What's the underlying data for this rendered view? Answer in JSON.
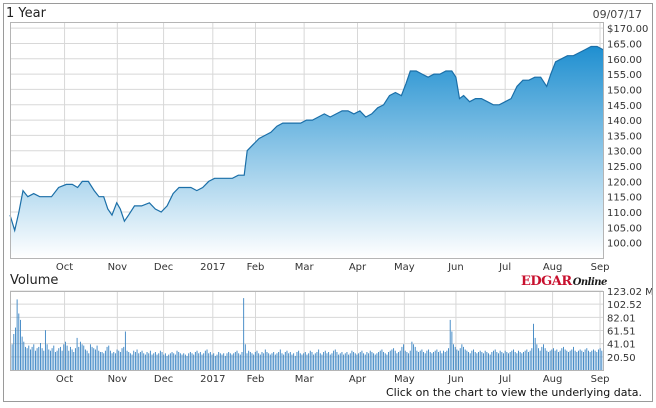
{
  "header": {
    "period": "1 Year",
    "date": "09/07/17"
  },
  "volume_title": "Volume",
  "footer_note": "Click on the chart to view the underlying data.",
  "brand": {
    "edgar": "EDGAR",
    "online": "Online"
  },
  "colors": {
    "price_top": "#1f8fd0",
    "price_bottom": "#ffffff",
    "price_line": "#1b6fa8",
    "volume_bar": "#3d86c4",
    "grid": "#d8d8d8",
    "frame": "#9a9a9a"
  },
  "chart_data": [
    {
      "type": "area",
      "title": "1 Year",
      "x_labels": [
        "Oct",
        "Nov",
        "Dec",
        "2017",
        "Feb",
        "Mar",
        "Apr",
        "May",
        "Jun",
        "Jul",
        "Aug",
        "Sep"
      ],
      "x_label_positions": [
        0.092,
        0.181,
        0.259,
        0.342,
        0.414,
        0.496,
        0.586,
        0.665,
        0.752,
        0.835,
        0.915,
        0.995
      ],
      "y_ticks": [
        "$170.00",
        "165.00",
        "160.00",
        "155.00",
        "150.00",
        "145.00",
        "140.00",
        "135.00",
        "130.00",
        "125.00",
        "120.00",
        "115.00",
        "110.00",
        "105.00",
        "100.00"
      ],
      "ylim": [
        95,
        172
      ],
      "y_axis_side": "right",
      "grid": true,
      "series": [
        {
          "values": [
            [
              0.0,
              109
            ],
            [
              0.008,
              104
            ],
            [
              0.015,
              110
            ],
            [
              0.022,
              117
            ],
            [
              0.03,
              115
            ],
            [
              0.04,
              116
            ],
            [
              0.05,
              115
            ],
            [
              0.06,
              115
            ],
            [
              0.07,
              115
            ],
            [
              0.082,
              118
            ],
            [
              0.095,
              119
            ],
            [
              0.105,
              119
            ],
            [
              0.114,
              118
            ],
            [
              0.122,
              120
            ],
            [
              0.132,
              120
            ],
            [
              0.142,
              117
            ],
            [
              0.15,
              115
            ],
            [
              0.158,
              115
            ],
            [
              0.165,
              111
            ],
            [
              0.172,
              109
            ],
            [
              0.18,
              113
            ],
            [
              0.186,
              111
            ],
            [
              0.193,
              107
            ],
            [
              0.2,
              109
            ],
            [
              0.21,
              112
            ],
            [
              0.222,
              112
            ],
            [
              0.235,
              113
            ],
            [
              0.245,
              111
            ],
            [
              0.255,
              110
            ],
            [
              0.265,
              112
            ],
            [
              0.275,
              116
            ],
            [
              0.285,
              118
            ],
            [
              0.295,
              118
            ],
            [
              0.305,
              118
            ],
            [
              0.315,
              117
            ],
            [
              0.325,
              118
            ],
            [
              0.335,
              120
            ],
            [
              0.345,
              121
            ],
            [
              0.355,
              121
            ],
            [
              0.365,
              121
            ],
            [
              0.375,
              121
            ],
            [
              0.385,
              122
            ],
            [
              0.395,
              122
            ],
            [
              0.4,
              130
            ],
            [
              0.41,
              132
            ],
            [
              0.42,
              134
            ],
            [
              0.43,
              135
            ],
            [
              0.44,
              136
            ],
            [
              0.45,
              138
            ],
            [
              0.46,
              139
            ],
            [
              0.47,
              139
            ],
            [
              0.48,
              139
            ],
            [
              0.49,
              139
            ],
            [
              0.5,
              140
            ],
            [
              0.51,
              140
            ],
            [
              0.52,
              141
            ],
            [
              0.53,
              142
            ],
            [
              0.54,
              141
            ],
            [
              0.55,
              142
            ],
            [
              0.56,
              143
            ],
            [
              0.57,
              143
            ],
            [
              0.58,
              142
            ],
            [
              0.59,
              143
            ],
            [
              0.6,
              141
            ],
            [
              0.61,
              142
            ],
            [
              0.62,
              144
            ],
            [
              0.63,
              145
            ],
            [
              0.64,
              148
            ],
            [
              0.65,
              149
            ],
            [
              0.66,
              148
            ],
            [
              0.668,
              152
            ],
            [
              0.675,
              156
            ],
            [
              0.685,
              156
            ],
            [
              0.695,
              155
            ],
            [
              0.705,
              154
            ],
            [
              0.715,
              155
            ],
            [
              0.725,
              155
            ],
            [
              0.735,
              156
            ],
            [
              0.745,
              156
            ],
            [
              0.752,
              154
            ],
            [
              0.758,
              147
            ],
            [
              0.765,
              148
            ],
            [
              0.775,
              146
            ],
            [
              0.785,
              147
            ],
            [
              0.795,
              147
            ],
            [
              0.805,
              146
            ],
            [
              0.815,
              145
            ],
            [
              0.825,
              145
            ],
            [
              0.835,
              146
            ],
            [
              0.845,
              147
            ],
            [
              0.855,
              151
            ],
            [
              0.865,
              153
            ],
            [
              0.875,
              153
            ],
            [
              0.885,
              154
            ],
            [
              0.895,
              154
            ],
            [
              0.905,
              151
            ],
            [
              0.912,
              155
            ],
            [
              0.92,
              159
            ],
            [
              0.93,
              160
            ],
            [
              0.94,
              161
            ],
            [
              0.95,
              161
            ],
            [
              0.96,
              162
            ],
            [
              0.97,
              163
            ],
            [
              0.98,
              164
            ],
            [
              0.99,
              164
            ],
            [
              1.0,
              163
            ]
          ]
        }
      ]
    },
    {
      "type": "bar",
      "title": "Volume",
      "x_labels": [
        "Oct",
        "Nov",
        "Dec",
        "2017",
        "Feb",
        "Mar",
        "Apr",
        "May",
        "Jun",
        "Jul",
        "Aug",
        "Sep"
      ],
      "x_label_positions": [
        0.092,
        0.181,
        0.259,
        0.342,
        0.414,
        0.496,
        0.586,
        0.665,
        0.752,
        0.835,
        0.915,
        0.995
      ],
      "y_ticks": [
        "123.02 M",
        "102.52",
        "82.01",
        "61.51",
        "41.01",
        "20.50"
      ],
      "ylim": [
        0,
        123.02
      ],
      "y_axis_side": "right",
      "grid": true,
      "values": [
        48,
        40,
        56,
        66,
        110,
        88,
        78,
        52,
        44,
        36,
        34,
        38,
        32,
        36,
        40,
        30,
        34,
        36,
        42,
        34,
        30,
        62,
        40,
        32,
        30,
        34,
        38,
        28,
        30,
        34,
        36,
        30,
        40,
        44,
        38,
        30,
        36,
        32,
        28,
        34,
        50,
        36,
        44,
        40,
        38,
        32,
        30,
        26,
        40,
        36,
        34,
        32,
        38,
        30,
        28,
        28,
        26,
        30,
        36,
        38,
        30,
        26,
        28,
        26,
        32,
        30,
        28,
        34,
        36,
        60,
        30,
        28,
        26,
        24,
        30,
        28,
        32,
        26,
        28,
        30,
        26,
        24,
        28,
        26,
        30,
        24,
        26,
        28,
        24,
        26,
        30,
        28,
        24,
        26,
        22,
        24,
        26,
        28,
        26,
        24,
        30,
        28,
        26,
        24,
        26,
        24,
        22,
        26,
        28,
        26,
        24,
        28,
        30,
        26,
        28,
        24,
        26,
        30,
        32,
        26,
        28,
        24,
        26,
        22,
        24,
        28,
        26,
        24,
        26,
        22,
        26,
        28,
        26,
        24,
        26,
        28,
        30,
        26,
        24,
        28,
        112,
        40,
        26,
        30,
        28,
        26,
        24,
        28,
        30,
        26,
        24,
        28,
        26,
        32,
        28,
        26,
        24,
        26,
        28,
        24,
        26,
        28,
        32,
        26,
        24,
        28,
        30,
        26,
        28,
        24,
        26,
        22,
        28,
        30,
        26,
        24,
        26,
        28,
        24,
        26,
        30,
        28,
        24,
        26,
        28,
        32,
        26,
        24,
        28,
        30,
        26,
        28,
        24,
        26,
        30,
        32,
        28,
        24,
        26,
        28,
        24,
        26,
        28,
        24,
        26,
        30,
        28,
        26,
        24,
        26,
        28,
        30,
        26,
        24,
        28,
        26,
        30,
        28,
        26,
        24,
        26,
        28,
        30,
        32,
        28,
        26,
        24,
        28,
        30,
        32,
        34,
        30,
        26,
        28,
        30,
        36,
        40,
        30,
        28,
        26,
        30,
        44,
        40,
        36,
        30,
        28,
        30,
        32,
        28,
        26,
        30,
        32,
        28,
        26,
        28,
        30,
        32,
        28,
        30,
        26,
        30,
        28,
        30,
        34,
        78,
        60,
        40,
        36,
        32,
        30,
        34,
        40,
        36,
        32,
        30,
        28,
        26,
        30,
        32,
        28,
        26,
        28,
        30,
        28,
        26,
        30,
        28,
        26,
        24,
        28,
        30,
        32,
        28,
        26,
        30,
        28,
        26,
        30,
        28,
        26,
        28,
        30,
        32,
        28,
        26,
        30,
        28,
        26,
        28,
        30,
        32,
        28,
        30,
        34,
        72,
        50,
        40,
        34,
        30,
        36,
        40,
        34,
        30,
        28,
        30,
        32,
        34,
        30,
        32,
        28,
        30,
        34,
        36,
        32,
        30,
        28,
        30,
        32,
        36,
        30,
        28,
        30,
        32,
        30,
        28,
        32,
        34,
        30,
        28,
        30,
        32,
        30,
        28,
        32,
        34,
        30
      ]
    }
  ]
}
